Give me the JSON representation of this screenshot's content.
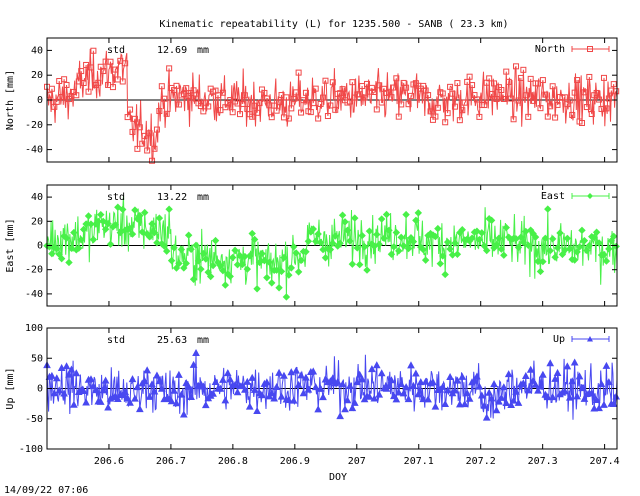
{
  "title": "Kinematic repeatability (L) for 1235.500 - SANB  ( 23.3 km)",
  "xlabel": "DOY",
  "timestamp": "14/09/22 07:06",
  "x_ticks": [
    "206.6",
    "206.7",
    "206.8",
    "206.9",
    "207",
    "207.1",
    "207.2",
    "207.3",
    "207.4"
  ],
  "chart_data": [
    {
      "type": "line",
      "panel": "north",
      "series_name": "North",
      "ylabel": "North [mm]",
      "std_label": "std",
      "std_value": "12.69",
      "std_unit": "mm",
      "color": "#f04848",
      "marker": "square",
      "xlim": [
        206.5,
        207.42
      ],
      "ylim": [
        -50,
        50
      ],
      "y_ticks": [
        "40",
        "20",
        "0",
        "-20",
        "-40"
      ],
      "amplitude": 12.7,
      "segments": [
        {
          "x0": 206.5,
          "x1": 206.55,
          "y0": -2,
          "y1": 6
        },
        {
          "x0": 206.55,
          "x1": 206.63,
          "y0": 15,
          "y1": 28
        },
        {
          "x0": 206.63,
          "x1": 206.68,
          "y0": -20,
          "y1": -30
        },
        {
          "x0": 206.68,
          "x1": 206.72,
          "y0": -5,
          "y1": 5
        },
        {
          "x0": 206.72,
          "x1": 206.9,
          "y0": 3,
          "y1": -4
        },
        {
          "x0": 206.9,
          "x1": 207.1,
          "y0": 0,
          "y1": 4
        },
        {
          "x0": 207.1,
          "x1": 207.25,
          "y0": -2,
          "y1": 5
        },
        {
          "x0": 207.25,
          "x1": 207.42,
          "y0": 3,
          "y1": 0
        }
      ]
    },
    {
      "type": "line",
      "panel": "east",
      "series_name": "East",
      "ylabel": "East [mm]",
      "std_label": "std",
      "std_value": "13.22",
      "std_unit": "mm",
      "color": "#48f048",
      "marker": "diamond",
      "xlim": [
        206.5,
        207.42
      ],
      "ylim": [
        -50,
        50
      ],
      "y_ticks": [
        "40",
        "20",
        "0",
        "-20",
        "-40"
      ],
      "amplitude": 13.2,
      "segments": [
        {
          "x0": 206.5,
          "x1": 206.58,
          "y0": 5,
          "y1": 10
        },
        {
          "x0": 206.58,
          "x1": 206.7,
          "y0": 18,
          "y1": 12
        },
        {
          "x0": 206.7,
          "x1": 206.85,
          "y0": -8,
          "y1": -12
        },
        {
          "x0": 206.85,
          "x1": 206.92,
          "y0": -18,
          "y1": -5
        },
        {
          "x0": 206.92,
          "x1": 207.1,
          "y0": 5,
          "y1": 8
        },
        {
          "x0": 207.1,
          "x1": 207.25,
          "y0": 2,
          "y1": 4
        },
        {
          "x0": 207.25,
          "x1": 207.42,
          "y0": 0,
          "y1": -3
        }
      ]
    },
    {
      "type": "line",
      "panel": "up",
      "series_name": "Up",
      "ylabel": "Up [mm]",
      "std_label": "std",
      "std_value": "25.63",
      "std_unit": "mm",
      "color": "#4848f0",
      "marker": "triangle",
      "xlim": [
        206.5,
        207.42
      ],
      "ylim": [
        -100,
        100
      ],
      "y_ticks": [
        "100",
        "50",
        "0",
        "-50",
        "-100"
      ],
      "amplitude": 25.6,
      "segments": [
        {
          "x0": 206.5,
          "x1": 206.65,
          "y0": 5,
          "y1": -10
        },
        {
          "x0": 206.65,
          "x1": 206.72,
          "y0": 10,
          "y1": -15
        },
        {
          "x0": 206.72,
          "x1": 207.0,
          "y0": 0,
          "y1": 5
        },
        {
          "x0": 207.0,
          "x1": 207.2,
          "y0": 5,
          "y1": 0
        },
        {
          "x0": 207.2,
          "x1": 207.25,
          "y0": -25,
          "y1": -5
        },
        {
          "x0": 207.25,
          "x1": 207.42,
          "y0": 5,
          "y1": -5
        }
      ]
    }
  ]
}
